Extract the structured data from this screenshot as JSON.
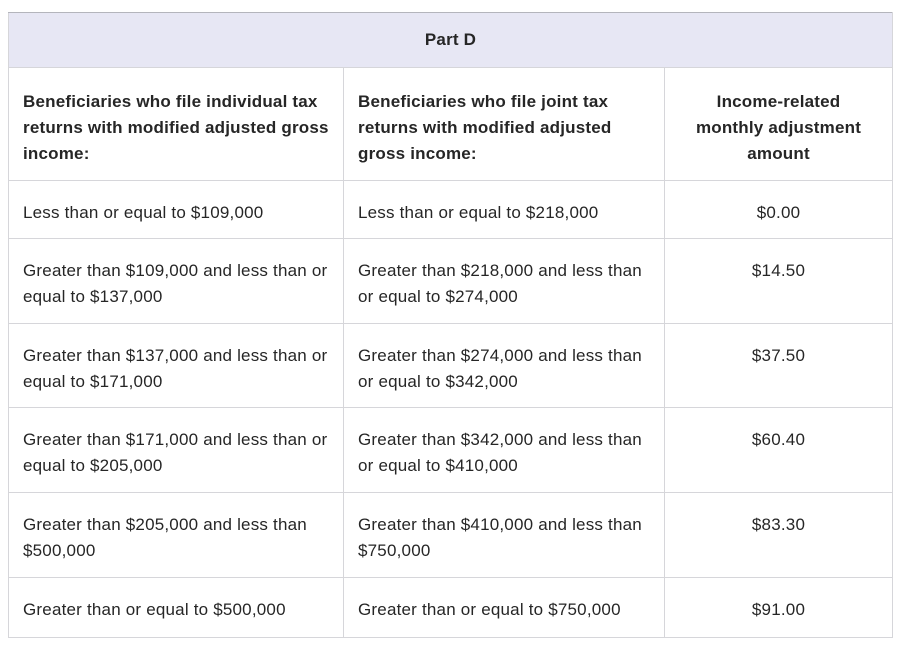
{
  "table": {
    "title": "Part D",
    "columns": [
      {
        "label": "Beneficiaries who file individual tax returns with modified adjusted gross income:",
        "align": "left"
      },
      {
        "label": "Beneficiaries who file joint tax returns with modified adjusted gross income:",
        "align": "left"
      },
      {
        "label": "Income-related monthly adjustment amount",
        "align": "center"
      }
    ],
    "rows": [
      {
        "individual": "Less than or equal to $109,000",
        "joint": "Less than or equal to $218,000",
        "amount": "$0.00"
      },
      {
        "individual": "Greater than $109,000 and less than or equal to $137,000",
        "joint": "Greater than $218,000 and less than or equal to $274,000",
        "amount": "$14.50"
      },
      {
        "individual": "Greater than $137,000 and less than or equal to $171,000",
        "joint": "Greater than $274,000 and less than or equal to $342,000",
        "amount": "$37.50"
      },
      {
        "individual": "Greater than $171,000 and less than or equal to $205,000",
        "joint": "Greater than $342,000 and less than or equal to $410,000",
        "amount": "$60.40"
      },
      {
        "individual": "Greater than $205,000 and less than $500,000",
        "joint": "Greater than $410,000 and less than $750,000",
        "amount": "$83.30"
      },
      {
        "individual": "Greater than or equal to $500,000",
        "joint": "Greater than or equal to $750,000",
        "amount": "$91.00"
      }
    ],
    "colors": {
      "title_background": "#e7e7f4",
      "border": "#d6d6da",
      "text": "#262626",
      "cell_background": "#ffffff"
    }
  }
}
